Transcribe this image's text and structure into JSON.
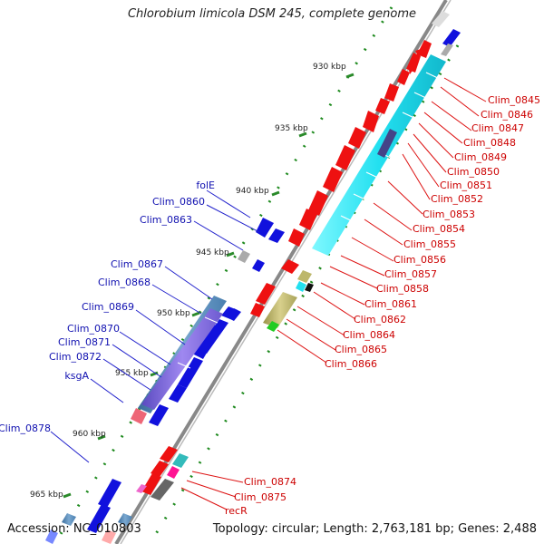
{
  "title": "Chlorobium limicola DSM 245, complete genome",
  "accession": "Accession: NC_010803",
  "topology": "Topology: circular; Length: 2,763,181 bp; Genes: 2,488",
  "ticks": [
    "930 kbp",
    "935 kbp",
    "940 kbp",
    "945 kbp",
    "950 kbp",
    "955 kbp",
    "960 kbp",
    "965 kbp"
  ],
  "left_labels": [
    "folE",
    "Clim_0860",
    "Clim_0863",
    "Clim_0867",
    "Clim_0868",
    "Clim_0869",
    "Clim_0870",
    "Clim_0871",
    "Clim_0872",
    "ksgA",
    "Clim_0878"
  ],
  "right_labels": [
    "Clim_0845",
    "Clim_0846",
    "Clim_0847",
    "Clim_0848",
    "Clim_0849",
    "Clim_0850",
    "Clim_0851",
    "Clim_0852",
    "Clim_0853",
    "Clim_0854",
    "Clim_0855",
    "Clim_0856",
    "Clim_0857",
    "Clim_0858",
    "Clim_0861",
    "Clim_0862",
    "Clim_0864",
    "Clim_0865",
    "Clim_0866",
    "Clim_0874",
    "Clim_0875",
    "recR"
  ],
  "colors": {
    "reverse_cds": "#ee1111",
    "forward_cds": "#1111dd",
    "cyan_feature": "#22e0f0",
    "purple_feature": "#7f68d8",
    "olive_feature": "#bdb76b",
    "steel_feature": "#4a7fb0",
    "grey_feature": "#aaaaaa",
    "backbone": "#888888",
    "tick": "#2a8a2a",
    "left_label": "#1010b0",
    "right_label": "#cc0000"
  }
}
